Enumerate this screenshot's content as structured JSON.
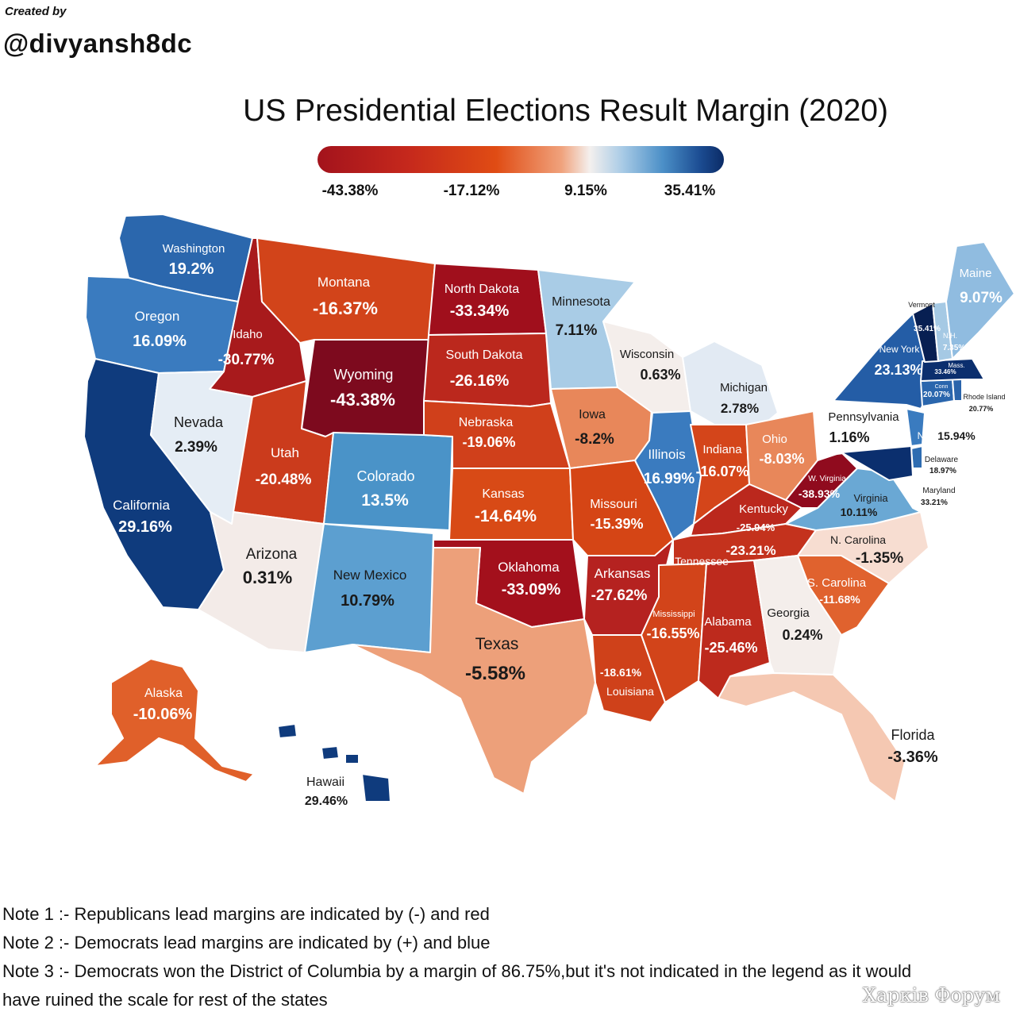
{
  "credit": {
    "label": "Created by",
    "handle": "@divyansh8dc"
  },
  "title": "US Presidential Elections Result Margin (2020)",
  "scale": {
    "ticks": [
      "-43.38%",
      "-17.12%",
      "9.15%",
      "35.41%"
    ]
  },
  "states": [
    {
      "key": "wa",
      "name": "Washington",
      "value": "19.2%",
      "margin": 19.2,
      "color": "#2b67ad"
    },
    {
      "key": "or",
      "name": "Oregon",
      "value": "16.09%",
      "margin": 16.09,
      "color": "#3a7bbf"
    },
    {
      "key": "ca",
      "name": "California",
      "value": "29.16%",
      "margin": 29.16,
      "color": "#0f3b7d"
    },
    {
      "key": "id",
      "name": "Idaho",
      "value": "-30.77%",
      "margin": -30.77,
      "color": "#a81a1c"
    },
    {
      "key": "nv",
      "name": "Nevada",
      "value": "2.39%",
      "margin": 2.39,
      "color": "#e5edf5"
    },
    {
      "key": "mt",
      "name": "Montana",
      "value": "-16.37%",
      "margin": -16.37,
      "color": "#d2441a"
    },
    {
      "key": "wy",
      "name": "Wyoming",
      "value": "-43.38%",
      "margin": -43.38,
      "color": "#7d0a1e"
    },
    {
      "key": "ut",
      "name": "Utah",
      "value": "-20.48%",
      "margin": -20.48,
      "color": "#cb3b1c"
    },
    {
      "key": "az",
      "name": "Arizona",
      "value": "0.31%",
      "margin": 0.31,
      "color": "#f3ebe8"
    },
    {
      "key": "co",
      "name": "Colorado",
      "value": "13.5%",
      "margin": 13.5,
      "color": "#4a93c8"
    },
    {
      "key": "nm",
      "name": "New Mexico",
      "value": "10.79%",
      "margin": 10.79,
      "color": "#5c9fd0"
    },
    {
      "key": "nd",
      "name": "North Dakota",
      "value": "-33.34%",
      "margin": -33.34,
      "color": "#a00f1c"
    },
    {
      "key": "sd",
      "name": "South Dakota",
      "value": "-26.16%",
      "margin": -26.16,
      "color": "#bb281d"
    },
    {
      "key": "ne",
      "name": "Nebraska",
      "value": "-19.06%",
      "margin": -19.06,
      "color": "#d0401b"
    },
    {
      "key": "ks",
      "name": "Kansas",
      "value": "-14.64%",
      "margin": -14.64,
      "color": "#d84a16"
    },
    {
      "key": "ok",
      "name": "Oklahoma",
      "value": "-33.09%",
      "margin": -33.09,
      "color": "#a3101c"
    },
    {
      "key": "tx",
      "name": "Texas",
      "value": "-5.58%",
      "margin": -5.58,
      "color": "#eda07a"
    },
    {
      "key": "mn",
      "name": "Minnesota",
      "value": "7.11%",
      "margin": 7.11,
      "color": "#a9cce6"
    },
    {
      "key": "ia",
      "name": "Iowa",
      "value": "-8.2%",
      "margin": -8.2,
      "color": "#e8875a"
    },
    {
      "key": "mo",
      "name": "Missouri",
      "value": "-15.39%",
      "margin": -15.39,
      "color": "#d54515"
    },
    {
      "key": "ar",
      "name": "Arkansas",
      "value": "-27.62%",
      "margin": -27.62,
      "color": "#b52220"
    },
    {
      "key": "la",
      "name": "Louisiana",
      "value": "-18.61%",
      "margin": -18.61,
      "color": "#cf411a"
    },
    {
      "key": "wi",
      "name": "Wisconsin",
      "value": "0.63%",
      "margin": 0.63,
      "color": "#f4eeeb"
    },
    {
      "key": "il",
      "name": "Illinois",
      "value": "16.99%",
      "margin": 16.99,
      "color": "#3a7bbf"
    },
    {
      "key": "mi",
      "name": "Michigan",
      "value": "2.78%",
      "margin": 2.78,
      "color": "#e2eaf3"
    },
    {
      "key": "in",
      "name": "Indiana",
      "value": "-16.07%",
      "margin": -16.07,
      "color": "#d4451a"
    },
    {
      "key": "oh",
      "name": "Ohio",
      "value": "-8.03%",
      "margin": -8.03,
      "color": "#e8875a"
    },
    {
      "key": "ky",
      "name": "Kentucky",
      "value": "-25.94%",
      "margin": -25.94,
      "color": "#bb281d"
    },
    {
      "key": "tn",
      "name": "Tennessee",
      "value": "-23.21%",
      "margin": -23.21,
      "color": "#c4321d"
    },
    {
      "key": "ms",
      "name": "Mississippi",
      "value": "-16.55%",
      "margin": -16.55,
      "color": "#d2441a"
    },
    {
      "key": "al",
      "name": "Alabama",
      "value": "-25.46%",
      "margin": -25.46,
      "color": "#bd2a1d"
    },
    {
      "key": "ga",
      "name": "Georgia",
      "value": "0.24%",
      "margin": 0.24,
      "color": "#f4eeeb"
    },
    {
      "key": "fl",
      "name": "Florida",
      "value": "-3.36%",
      "margin": -3.36,
      "color": "#f5c8b2"
    },
    {
      "key": "sc",
      "name": "S. Carolina",
      "value": "-11.68%",
      "margin": -11.68,
      "color": "#e0622e"
    },
    {
      "key": "nc",
      "name": "N. Carolina",
      "value": "-1.35%",
      "margin": -1.35,
      "color": "#f7ddd1"
    },
    {
      "key": "va",
      "name": "Virginia",
      "value": "10.11%",
      "margin": 10.11,
      "color": "#6aa8d4"
    },
    {
      "key": "wv",
      "name": "W. Virginia",
      "value": "-38.93%",
      "margin": -38.93,
      "color": "#900b1e"
    },
    {
      "key": "pa",
      "name": "Pennsylvania",
      "value": "1.16%",
      "margin": 1.16,
      "color": "#ffffff"
    },
    {
      "key": "ny",
      "name": "New York",
      "value": "23.13%",
      "margin": 23.13,
      "color": "#245da6"
    },
    {
      "key": "nj",
      "name": "NJ",
      "value": "15.94%",
      "margin": 15.94,
      "color": "#3a7bbf"
    },
    {
      "key": "de",
      "name": "Delaware",
      "value": "18.97%",
      "margin": 18.97,
      "color": "#2e6cb1"
    },
    {
      "key": "md",
      "name": "Maryland",
      "value": "33.21%",
      "margin": 33.21,
      "color": "#0b2f6e"
    },
    {
      "key": "ct",
      "name": "Conn",
      "value": "20.07%",
      "margin": 20.07,
      "color": "#2a66ad"
    },
    {
      "key": "ri",
      "name": "Rhode Island",
      "value": "20.77%",
      "margin": 20.77,
      "color": "#2a64ab"
    },
    {
      "key": "ma",
      "name": "Mass.",
      "value": "33.46%",
      "margin": 33.46,
      "color": "#0b2f6e"
    },
    {
      "key": "vt",
      "name": "Vermont",
      "value": "35.41%",
      "margin": 35.41,
      "color": "#071f52"
    },
    {
      "key": "nh",
      "name": "N.H.",
      "value": "7.35%",
      "margin": 7.35,
      "color": "#a5c9e4"
    },
    {
      "key": "me",
      "name": "Maine",
      "value": "9.07%",
      "margin": 9.07,
      "color": "#90bce0"
    },
    {
      "key": "ak",
      "name": "Alaska",
      "value": "-10.06%",
      "margin": -10.06,
      "color": "#e0602a"
    },
    {
      "key": "hi",
      "name": "Hawaii",
      "value": "29.46%",
      "margin": 29.46,
      "color": "#0f3b7d"
    }
  ],
  "notes": [
    "Note 1 :- Republicans lead margins are indicated by (-) and red",
    "Note 2 :- Democrats lead margins are indicated by (+) and blue",
    "Note 3 :- Democrats won the District of Columbia by a margin of 86.75%,but it's not indicated in the legend as it would",
    "have ruined the scale for rest of the states"
  ],
  "watermark": "Харків Форум"
}
